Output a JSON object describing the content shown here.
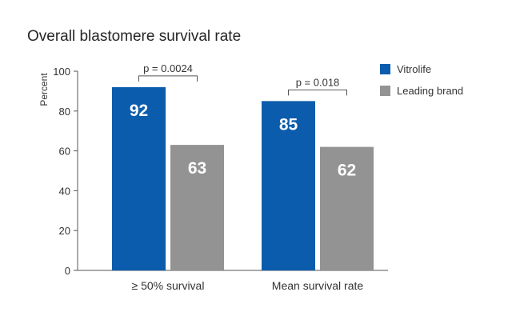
{
  "chart_data": {
    "type": "bar",
    "title": "Overall blastomere survival rate",
    "ylabel": "Percent",
    "xlabel": "",
    "ylim": [
      0,
      100
    ],
    "yticks": [
      0,
      20,
      40,
      60,
      80,
      100
    ],
    "categories": [
      "≥ 50% survival",
      "Mean survival rate"
    ],
    "series": [
      {
        "name": "Vitrolife",
        "color": "#0b5cad",
        "values": [
          92,
          85
        ]
      },
      {
        "name": "Leading brand",
        "color": "#939393",
        "values": [
          63,
          62
        ]
      }
    ],
    "annotations": [
      {
        "category": 0,
        "text": "p = 0.0024"
      },
      {
        "category": 1,
        "text": "p = 0.018"
      }
    ],
    "legend_position": "top-right",
    "grid": false
  }
}
